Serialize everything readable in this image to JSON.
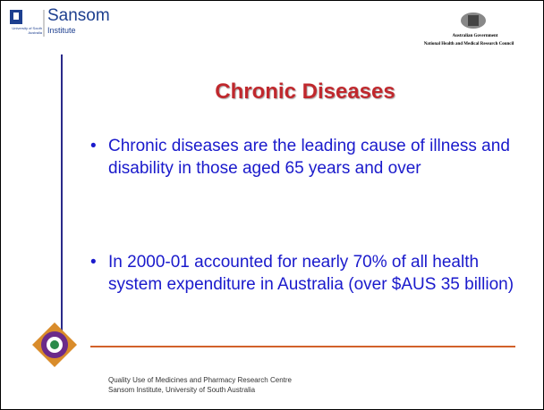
{
  "header": {
    "logo_left": {
      "name": "Sansom",
      "subname": "Institute",
      "university": "University of South Australia"
    },
    "logo_right": {
      "line1": "Australian Government",
      "line2": "National Health and Medical Research Council"
    }
  },
  "title": "Chronic Diseases",
  "bullets": [
    "Chronic diseases are the leading cause of illness and disability in those aged 65 years and over",
    "In 2000-01 accounted for nearly 70% of all health system expenditure in Australia (over $AUS 35 billion)"
  ],
  "footer": {
    "line1": "Quality Use of Medicines and Pharmacy Research Centre",
    "line2": "Sansom Institute, University of South Australia"
  }
}
